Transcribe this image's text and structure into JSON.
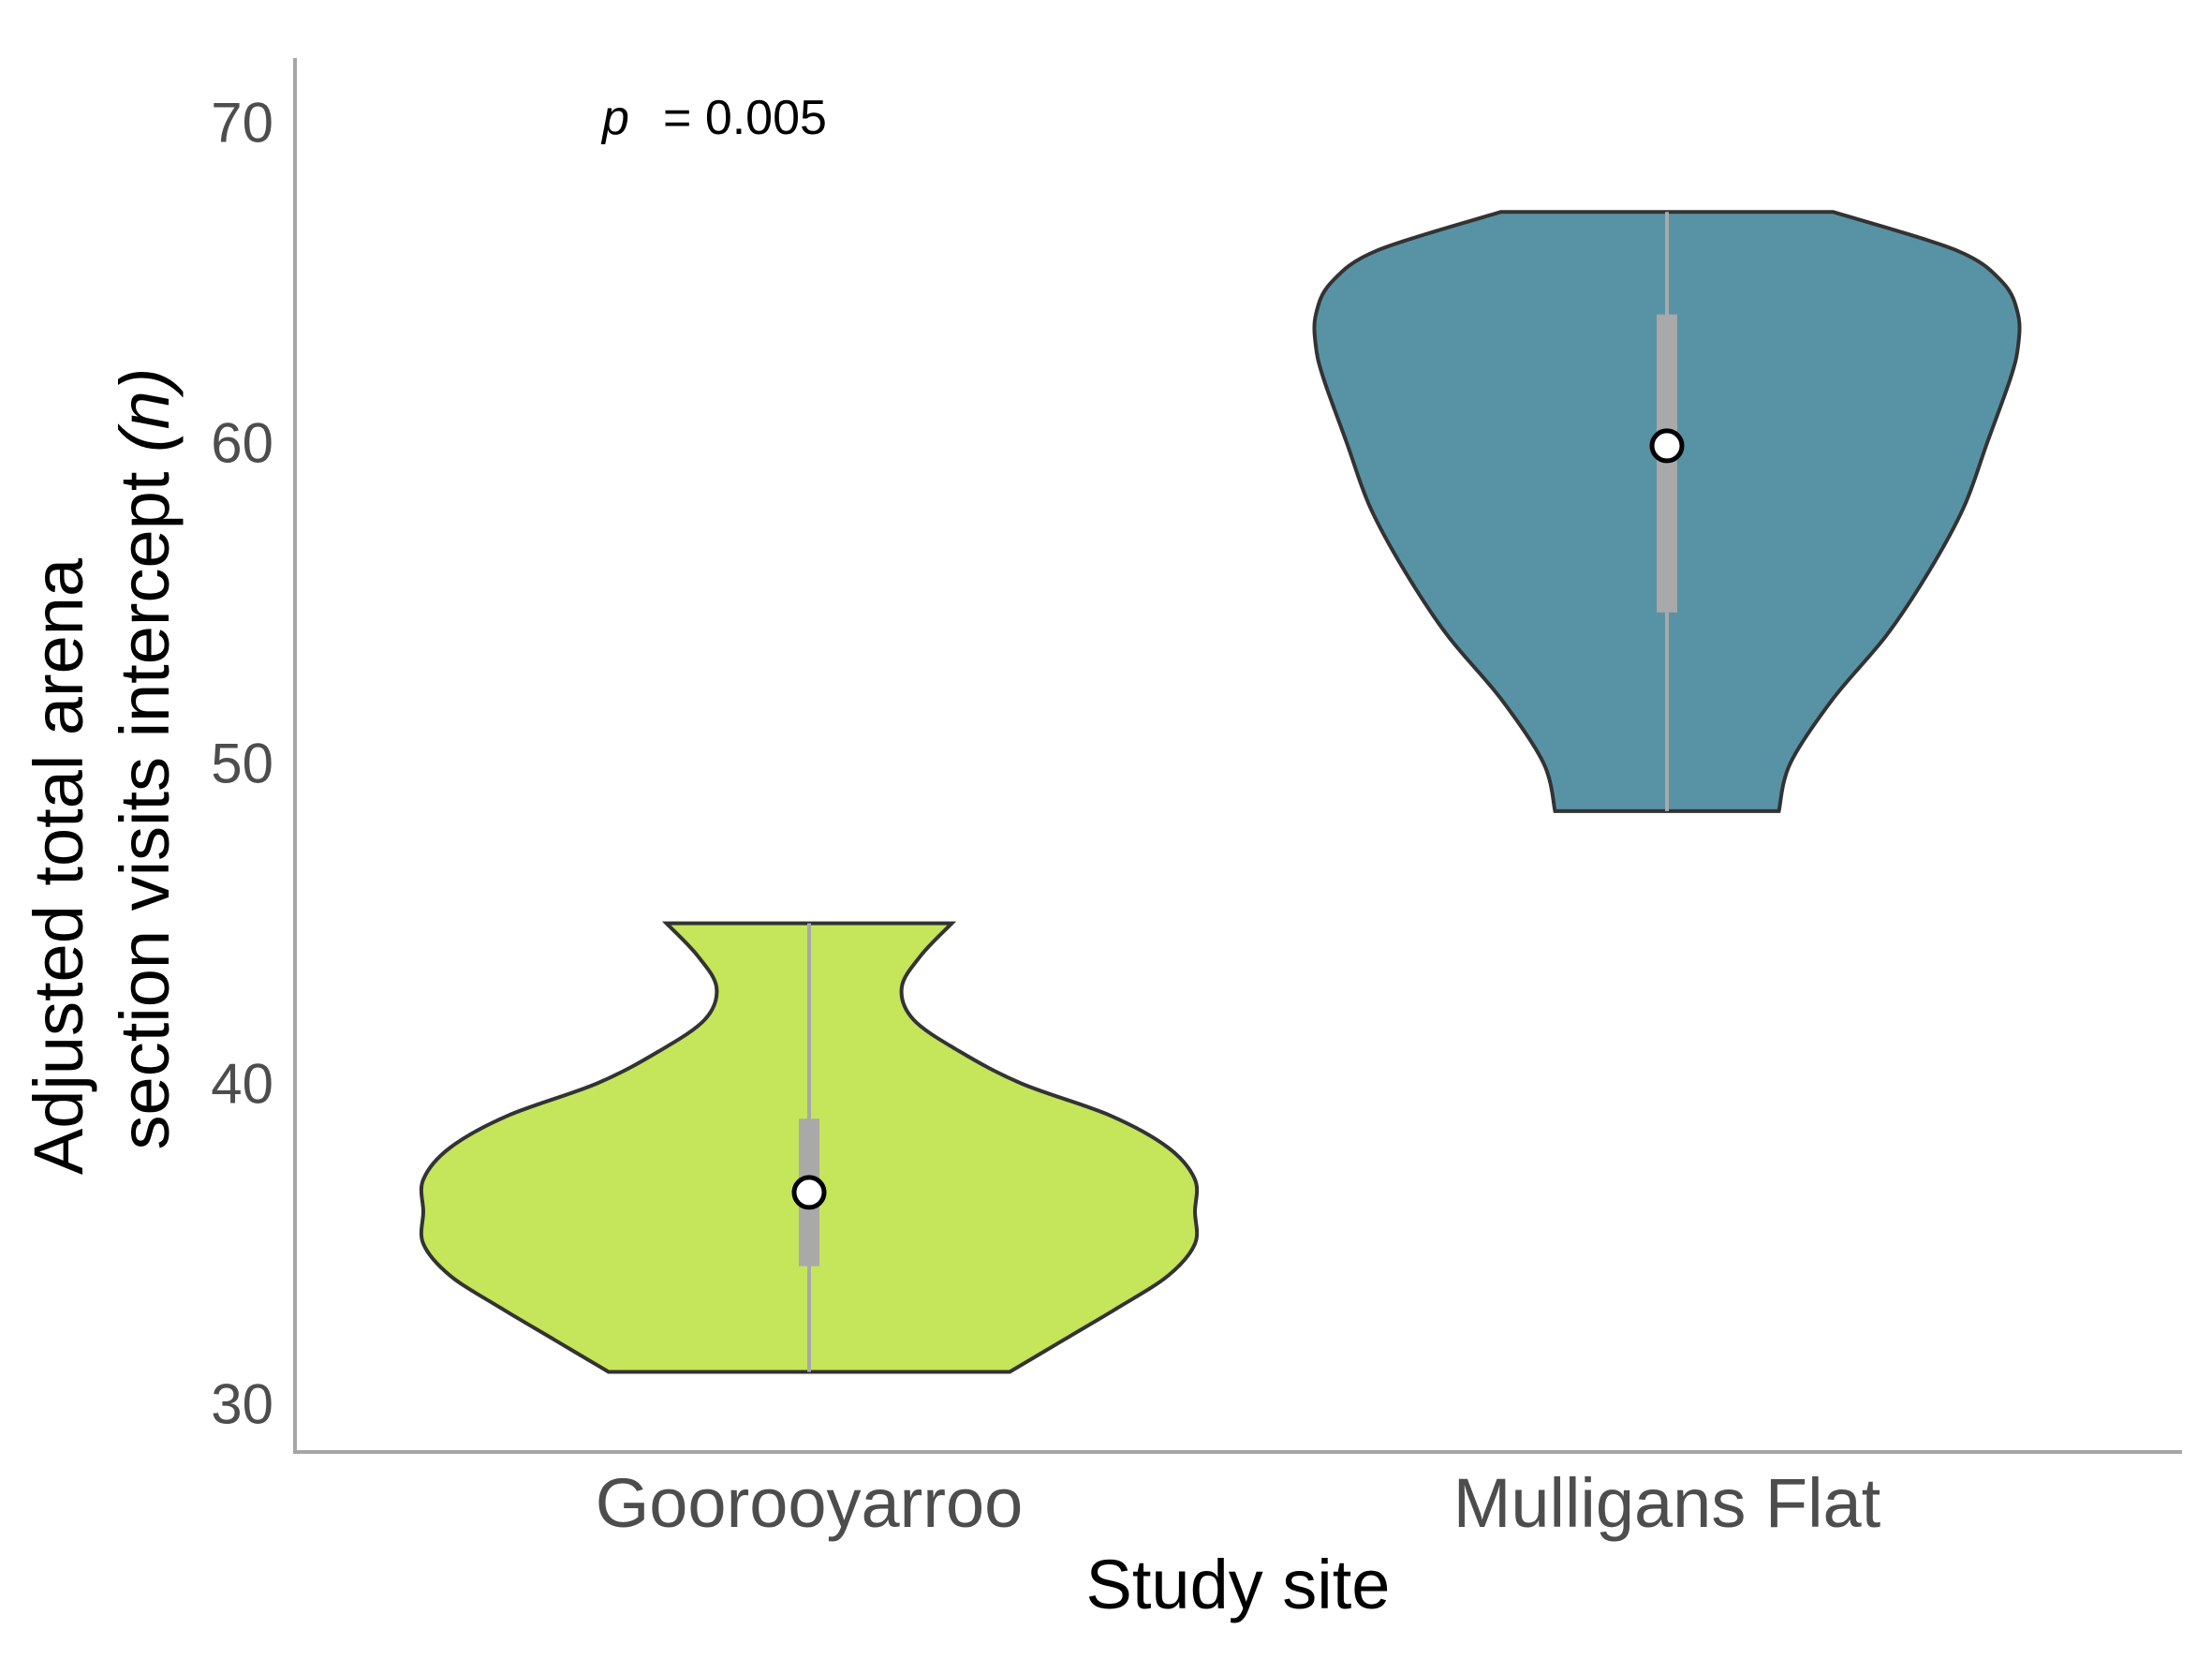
{
  "chart_data": {
    "type": "violin",
    "xlabel": "Study site",
    "ylabel_line1": "Adjusted total arena",
    "ylabel_line2": "section visits intercept",
    "ylabel_n": "(n)",
    "ylim": [
      28.5,
      72
    ],
    "yticks": [
      30,
      40,
      50,
      60,
      70
    ],
    "categories": [
      "Goorooyarroo",
      "Mulligans Flat"
    ],
    "annotation": {
      "p_symbol": "p",
      "p_text": "= 0.005"
    },
    "grid": false,
    "legend": "none",
    "colors": {
      "Goorooyarroo": "#c5e55a",
      "Mulligans Flat": "#5893a5",
      "outline": "#333333",
      "boxplot": "#a9a9a9",
      "axis": "#a6a6a6"
    },
    "series": [
      {
        "category": "Goorooyarroo",
        "min": 31.0,
        "q1": 34.3,
        "median": 36.6,
        "q3": 38.9,
        "max": 45.0,
        "density": [
          [
            31.0,
            0.52
          ],
          [
            32.0,
            0.66
          ],
          [
            33.0,
            0.8
          ],
          [
            34.0,
            0.93
          ],
          [
            35.0,
            1.0
          ],
          [
            36.0,
            1.0
          ],
          [
            37.0,
            1.0
          ],
          [
            38.0,
            0.93
          ],
          [
            39.0,
            0.78
          ],
          [
            40.0,
            0.55
          ],
          [
            41.0,
            0.39
          ],
          [
            42.0,
            0.27
          ],
          [
            43.0,
            0.24
          ],
          [
            44.0,
            0.29
          ],
          [
            45.0,
            0.37
          ]
        ]
      },
      {
        "category": "Mulligans Flat",
        "min": 48.5,
        "q1": 54.7,
        "median": 59.9,
        "q3": 64.0,
        "max": 67.2,
        "density": [
          [
            48.5,
            0.29
          ],
          [
            50.0,
            0.32
          ],
          [
            52.0,
            0.43
          ],
          [
            54.0,
            0.57
          ],
          [
            56.0,
            0.68
          ],
          [
            58.0,
            0.77
          ],
          [
            60.0,
            0.83
          ],
          [
            62.0,
            0.89
          ],
          [
            63.0,
            0.91
          ],
          [
            64.0,
            0.91
          ],
          [
            65.0,
            0.87
          ],
          [
            66.0,
            0.75
          ],
          [
            67.2,
            0.43
          ]
        ]
      }
    ]
  }
}
